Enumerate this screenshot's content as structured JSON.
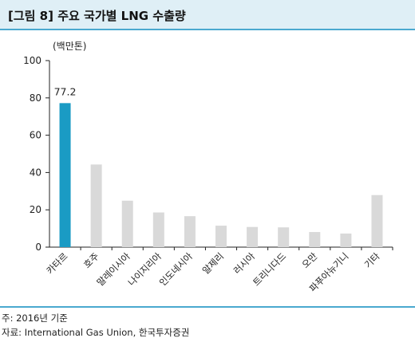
{
  "header": {
    "title": "[그림 8] 주요 국가별 LNG 수출량"
  },
  "chart_data": {
    "type": "bar",
    "unit": "(백만톤)",
    "categories": [
      "카타르",
      "호주",
      "말레이시아",
      "나이지리아",
      "인도네시아",
      "알제리",
      "러시아",
      "트리니다드",
      "오만",
      "파푸아뉴기니",
      "기타"
    ],
    "values": [
      77.2,
      44.3,
      24.9,
      18.6,
      16.6,
      11.5,
      10.8,
      10.6,
      8.1,
      7.3,
      27.9
    ],
    "highlight_index": 0,
    "data_labels": [
      {
        "index": 0,
        "text": "77.2"
      }
    ],
    "ylim": [
      0,
      100
    ],
    "yticks": [
      0,
      20,
      40,
      60,
      80,
      100
    ],
    "highlight_color": "#1a9bc4",
    "bar_color": "#d9d9d9",
    "grid": false
  },
  "footer": {
    "note": "주: 2016년 기준",
    "source": "자료: International Gas Union, 한국투자증권"
  }
}
